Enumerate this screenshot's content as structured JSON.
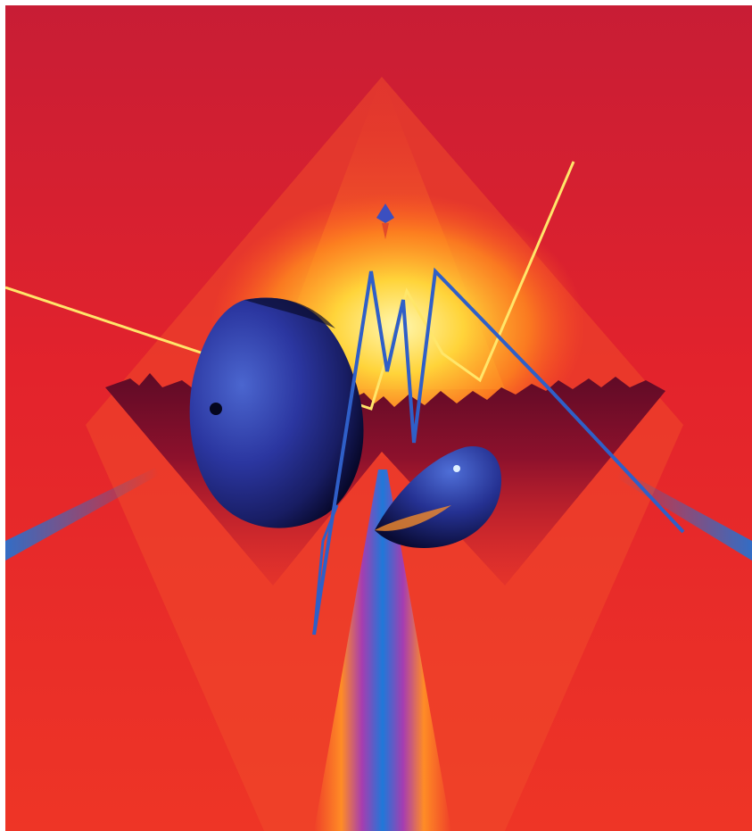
{
  "artwork": {
    "description_free": true,
    "palette": {
      "background_top": "#c81d35",
      "background_mid": "#e8242a",
      "background_side": "#f0432a",
      "glow_core": "#fff6a0",
      "glow_mid": "#ffd23c",
      "glow_outer": "#ff8a20",
      "shadow_plate": "#8a0f2c",
      "sphere_dark": "#0b0d3a",
      "sphere_mid": "#22297f",
      "sphere_light": "#3d5bc4",
      "zigzag_blue": "#2f5fc8",
      "zigzag_yellow": "#ffe66a",
      "beam_blue": "#1e78d8",
      "beam_orange": "#ff8a24"
    },
    "elements": [
      "background-gradient",
      "central-glow",
      "dark-spiked-plate",
      "large-blue-sphere",
      "small-blue-hemisphere",
      "blue-zigzag-line",
      "yellow-zigzag-line",
      "vertical-light-beam",
      "left-blue-ray",
      "right-blue-ray",
      "top-arrow-marker"
    ]
  }
}
